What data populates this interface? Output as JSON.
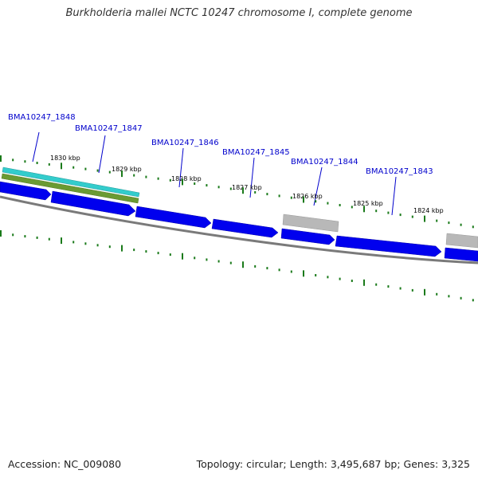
{
  "title": "Burkholderia mallei NCTC 10247 chromosome I, complete genome",
  "footer": {
    "accession": "Accession: NC_009080",
    "summary": "Topology: circular; Length: 3,495,687 bp; Genes: 3,325"
  },
  "gene_labels": [
    "BMA10247_1848",
    "BMA10247_1847",
    "BMA10247_1846",
    "BMA10247_1845",
    "BMA10247_1844",
    "BMA10247_1843"
  ],
  "tick_labels": [
    "1830 kbp",
    "1829 kbp",
    "1828 kbp",
    "1827 kbp",
    "1826 kbp",
    "1825 kbp",
    "1824 kbp"
  ],
  "colors": {
    "gene": "#0000ee",
    "gene_highlight": "#3333ff",
    "backbone": "#888888",
    "tick": "#1a7a1a",
    "cyan_track": "#33cccc",
    "olive_track": "#669933",
    "grey_track": "#aaaaaa",
    "label": "#0000cc"
  }
}
